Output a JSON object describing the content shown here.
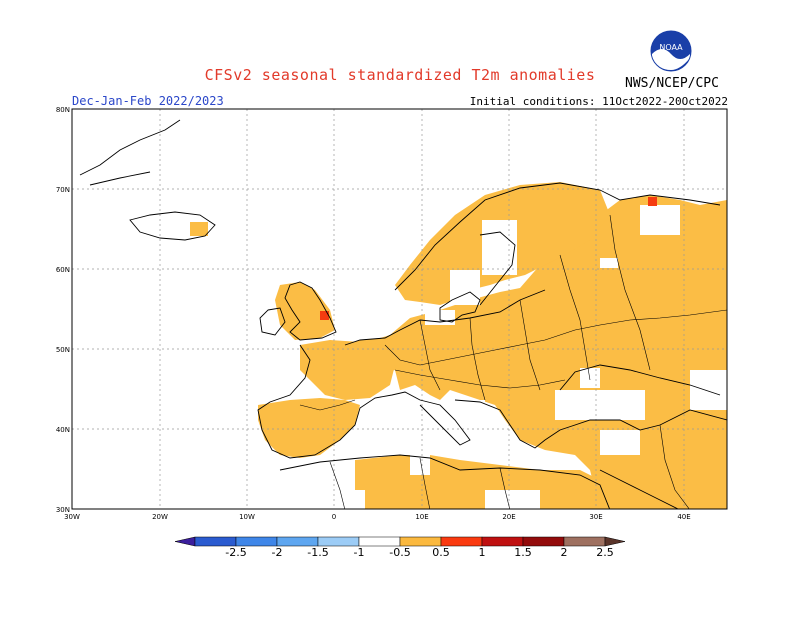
{
  "header": {
    "title": "CFSv2 seasonal standardized T2m anomalies",
    "period": "Dec-Jan-Feb 2022/2023",
    "initial_conditions": "Initial conditions: 11Oct2022-20Oct2022",
    "agency": "NWS/NCEP/CPC",
    "logo_text": "NOAA"
  },
  "axes": {
    "lat_labels": [
      "80N",
      "70N",
      "60N",
      "50N",
      "40N",
      "30N"
    ],
    "lon_labels": [
      "30W",
      "20W",
      "10W",
      "0",
      "10E",
      "20E",
      "30E",
      "40E"
    ]
  },
  "colorbar": {
    "labels": [
      "-2.5",
      "-2",
      "-1.5",
      "-1",
      "-0.5",
      "0.5",
      "1",
      "1.5",
      "2",
      "2.5"
    ],
    "colors": [
      "#3b1e9c",
      "#2a5bd0",
      "#3f86e8",
      "#5ea6f0",
      "#9cccf6",
      "#ffffff",
      "#fbb93f",
      "#fa3a10",
      "#bf1010",
      "#930b0b",
      "#9e7060",
      "#5a342a"
    ]
  },
  "map": {
    "region": "Europe",
    "anomaly_fill_color": "#fbbd45",
    "strong_anomaly_color": "#f53c10",
    "grid": true
  }
}
